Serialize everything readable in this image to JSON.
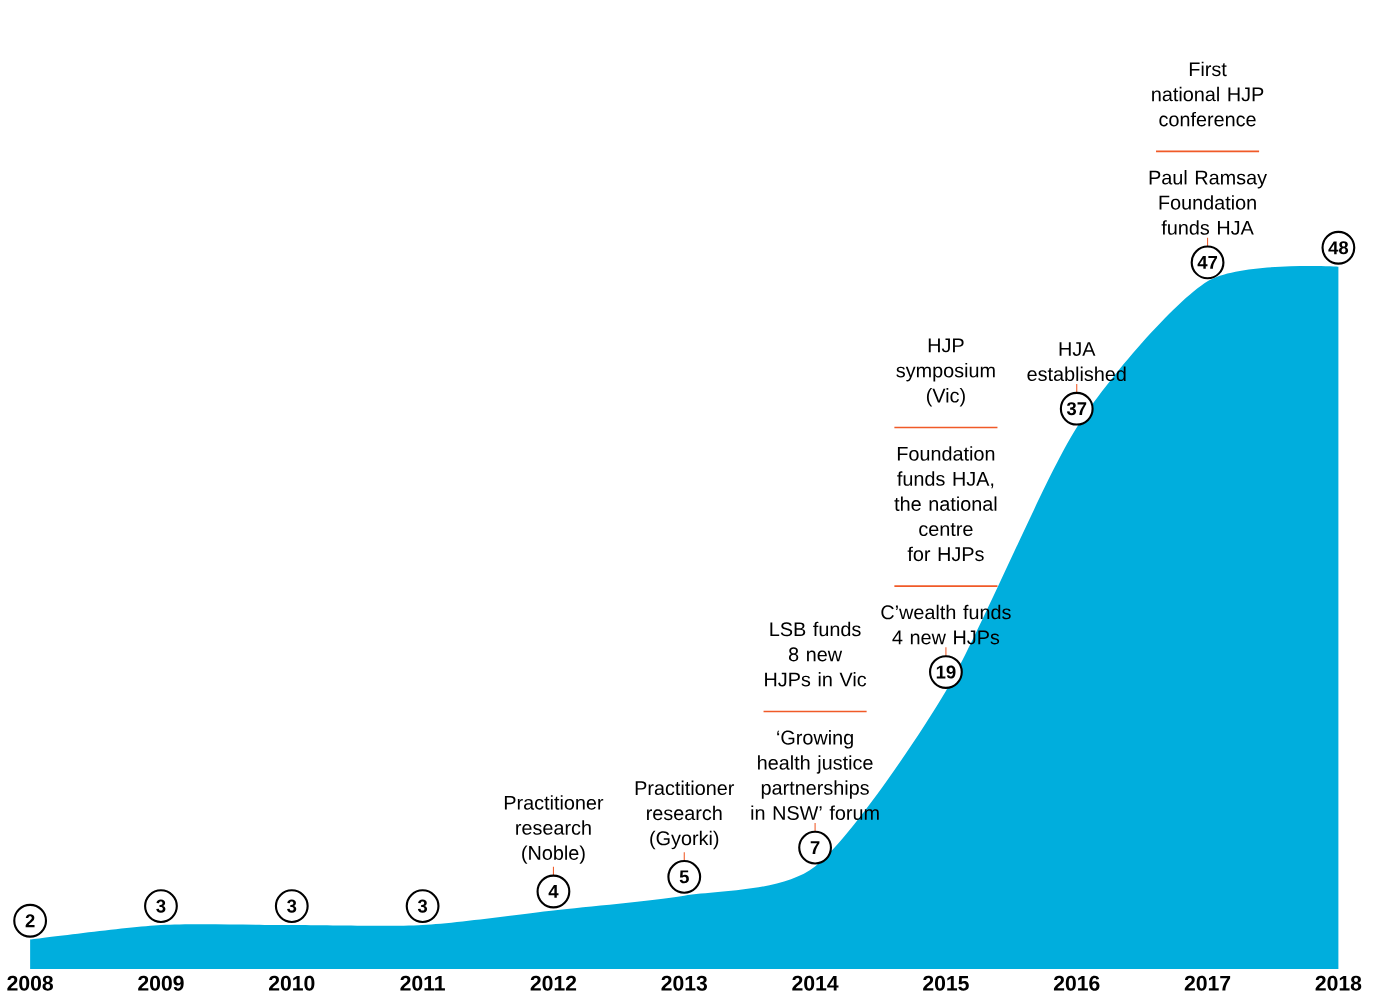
{
  "chart_data": {
    "type": "area",
    "categories": [
      "2008",
      "2009",
      "2010",
      "2011",
      "2012",
      "2013",
      "2014",
      "2015",
      "2016",
      "2017",
      "2018"
    ],
    "values": [
      2,
      3,
      3,
      3,
      4,
      5,
      7,
      19,
      37,
      47,
      48
    ],
    "value_labels": [
      "2",
      "3",
      "3",
      "3",
      "4",
      "5",
      "7",
      "19",
      "37",
      "47",
      "48"
    ],
    "color": "#00aedd",
    "annotations": [
      {
        "text": "Practitioner research (Noble)",
        "x": "2012",
        "y": 4
      },
      {
        "text": "Practitioner research (Gyorki)",
        "x": "2013",
        "y": 5
      },
      {
        "text": "‘Growing health justice partnerships in NSW’ forum",
        "x": "2014",
        "y": 7
      },
      "LSB funds 8 new HJPs in Vic",
      {
        "text": "C’wealth funds 4 new HJPs",
        "x": "2015",
        "y": 19
      },
      "Foundation funds HJA, the national centre for HJPs",
      "HJP symposium (Vic)",
      {
        "text": "HJA established",
        "x": "2016",
        "y": 37
      },
      {
        "text": "Paul Ramsay Foundation funds HJA",
        "x": "2017",
        "y": 47
      },
      "First national HJP conference"
    ]
  }
}
